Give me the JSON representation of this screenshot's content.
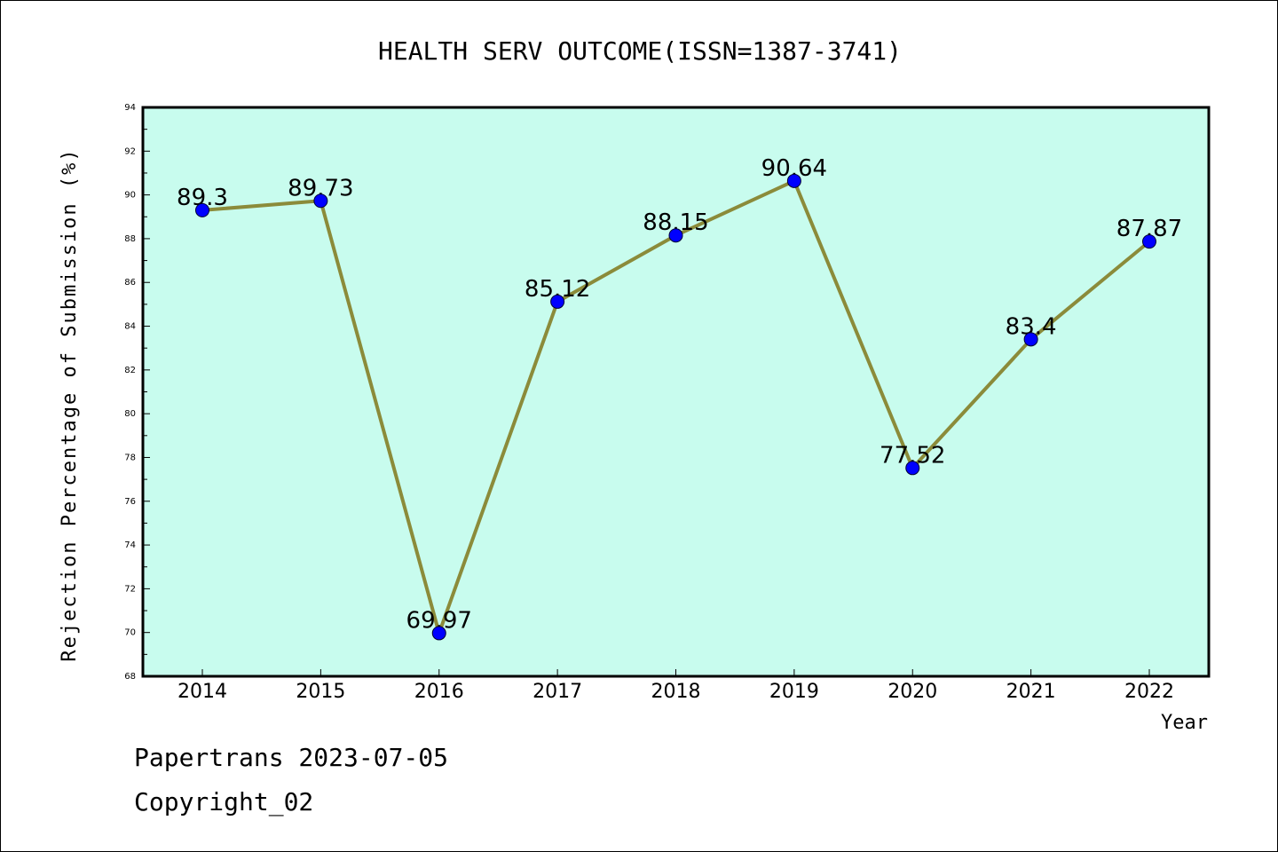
{
  "footer": {
    "stamp": "Papertrans 2023-07-05",
    "copyright": "Copyright_02"
  },
  "chart_data": {
    "type": "line",
    "title": "HEALTH SERV OUTCOME(ISSN=1387-3741)",
    "xlabel": "Year",
    "ylabel": "Rejection Percentage of Submission (%)",
    "categories": [
      "2014",
      "2015",
      "2016",
      "2017",
      "2018",
      "2019",
      "2020",
      "2021",
      "2022"
    ],
    "values": [
      89.3,
      89.73,
      69.97,
      85.12,
      88.15,
      90.64,
      77.52,
      83.4,
      87.87
    ],
    "data_labels": [
      "89.3",
      "89.73",
      "69.97",
      "85.12",
      "88.15",
      "90.64",
      "77.52",
      "83.4",
      "87.87"
    ],
    "ylim": [
      68,
      94
    ],
    "yticks": [
      68,
      70,
      72,
      74,
      76,
      78,
      80,
      82,
      84,
      86,
      88,
      90,
      92,
      94
    ],
    "grid": false,
    "legend": "none",
    "colors": {
      "plot_background": "#c8fcee",
      "line": "#8b8b3a",
      "marker": "#0000ff"
    }
  }
}
